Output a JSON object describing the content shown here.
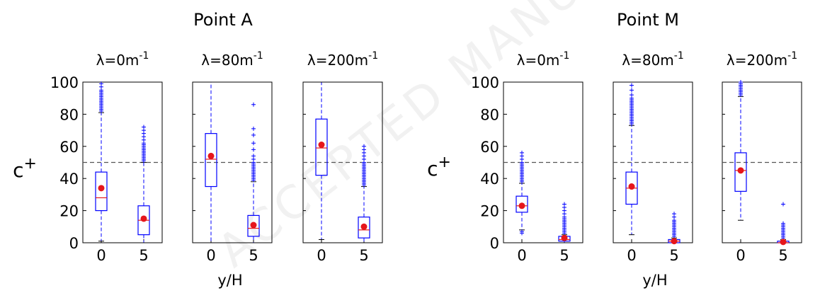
{
  "watermark": {
    "text": "ACCEPTED MANUSCRIPT"
  },
  "chart_data": [
    {
      "type": "box",
      "title": "Point A",
      "ylabel": "c",
      "ylabel_sup": "+",
      "xlabel": "y/H",
      "ylim": [
        0,
        100
      ],
      "yticks": [
        "0",
        "20",
        "40",
        "60",
        "80",
        "100"
      ],
      "reference_line": 50,
      "panels": [
        {
          "label": "λ=0m",
          "label_sup": "-1",
          "categories": [
            "0",
            "5"
          ],
          "boxes": [
            {
              "q1": 20,
              "median": 28,
              "q3": 44,
              "whisker_low": 1,
              "whisker_high": 81,
              "mean": 34,
              "outliers": [
                82,
                83,
                84,
                85,
                86,
                87,
                88,
                89,
                90,
                91,
                92,
                93,
                94,
                95,
                97,
                99
              ]
            },
            {
              "q1": 5,
              "median": 14,
              "q3": 23,
              "whisker_low": 0,
              "whisker_high": 50,
              "mean": 15,
              "outliers": [
                51,
                52,
                53,
                54,
                55,
                56,
                57,
                58,
                59,
                60,
                61,
                62,
                64,
                66,
                68,
                70,
                72
              ]
            }
          ]
        },
        {
          "label": "λ=80m",
          "label_sup": "-1",
          "categories": [
            "0",
            "5"
          ],
          "boxes": [
            {
              "q1": 35,
              "median": 52,
              "q3": 68,
              "whisker_low": 0,
              "whisker_high": 100,
              "mean": 54,
              "outliers": []
            },
            {
              "q1": 4,
              "median": 9,
              "q3": 17,
              "whisker_low": 0,
              "whisker_high": 38,
              "mean": 11,
              "outliers": [
                39,
                40,
                41,
                42,
                43,
                44,
                45,
                46,
                47,
                48,
                49,
                50,
                52,
                54,
                58,
                62,
                67,
                71,
                86
              ]
            }
          ]
        },
        {
          "label": "λ=200m",
          "label_sup": "-1",
          "categories": [
            "0",
            "5"
          ],
          "boxes": [
            {
              "q1": 42,
              "median": 59,
              "q3": 77,
              "whisker_low": 2,
              "whisker_high": 100,
              "mean": 61,
              "outliers": []
            },
            {
              "q1": 3,
              "median": 8,
              "q3": 16,
              "whisker_low": 0,
              "whisker_high": 35,
              "mean": 10,
              "outliers": [
                36,
                37,
                38,
                39,
                40,
                41,
                42,
                43,
                44,
                45,
                46,
                47,
                48,
                49,
                50,
                52,
                54,
                56,
                58,
                60
              ]
            }
          ]
        }
      ]
    },
    {
      "type": "box",
      "title": "Point M",
      "ylabel": "c",
      "ylabel_sup": "+",
      "xlabel": "y/H",
      "ylim": [
        0,
        100
      ],
      "yticks": [
        "0",
        "20",
        "40",
        "60",
        "80",
        "100"
      ],
      "reference_line": 50,
      "panels": [
        {
          "label": "λ=0m",
          "label_sup": "-1",
          "categories": [
            "0",
            "5"
          ],
          "boxes": [
            {
              "q1": 19,
              "median": 23,
              "q3": 29,
              "whisker_low": 8,
              "whisker_high": 37,
              "mean": 23,
              "outliers": [
                6,
                7,
                38,
                39,
                40,
                41,
                42,
                43,
                44,
                45,
                46,
                47,
                48,
                49,
                50,
                52,
                54,
                56
              ]
            },
            {
              "q1": 1,
              "median": 2,
              "q3": 4,
              "whisker_low": 0,
              "whisker_high": 5,
              "mean": 3,
              "outliers": [
                6,
                7,
                8,
                9,
                10,
                11,
                12,
                13,
                14,
                15,
                16,
                18,
                20,
                22,
                24
              ]
            }
          ]
        },
        {
          "label": "λ=80m",
          "label_sup": "-1",
          "categories": [
            "0",
            "5"
          ],
          "boxes": [
            {
              "q1": 24,
              "median": 34,
              "q3": 44,
              "whisker_low": 5,
              "whisker_high": 73,
              "mean": 35,
              "outliers": [
                74,
                75,
                76,
                77,
                78,
                79,
                80,
                81,
                82,
                83,
                84,
                85,
                86,
                87,
                88,
                89,
                90,
                92,
                95,
                98
              ]
            },
            {
              "q1": 0,
              "median": 1,
              "q3": 2,
              "whisker_low": 0,
              "whisker_high": 3,
              "mean": 1,
              "outliers": [
                4,
                5,
                6,
                7,
                8,
                9,
                10,
                11,
                12,
                13,
                14,
                16,
                18
              ]
            }
          ]
        },
        {
          "label": "λ=200m",
          "label_sup": "-1",
          "categories": [
            "0",
            "5"
          ],
          "boxes": [
            {
              "q1": 32,
              "median": 45,
              "q3": 56,
              "whisker_low": 14,
              "whisker_high": 91,
              "mean": 45,
              "outliers": [
                92,
                93,
                94,
                95,
                96,
                97,
                98,
                99,
                100
              ]
            },
            {
              "q1": 0,
              "median": 0,
              "q3": 1,
              "whisker_low": 0,
              "whisker_high": 2,
              "mean": 0.5,
              "outliers": [
                3,
                4,
                5,
                6,
                7,
                8,
                9,
                10,
                11,
                12,
                24
              ]
            }
          ]
        }
      ]
    }
  ]
}
